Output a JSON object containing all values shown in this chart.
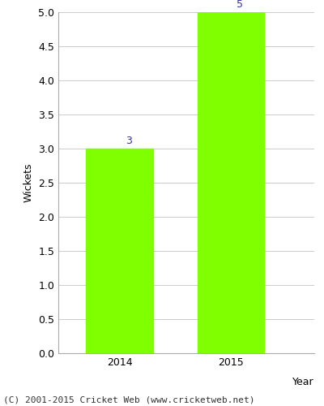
{
  "categories": [
    "2014",
    "2015"
  ],
  "values": [
    3,
    5
  ],
  "bar_color": "#7fff00",
  "label_color": "#3333aa",
  "xlabel": "Year",
  "ylabel": "Wickets",
  "ylim": [
    0,
    5.0
  ],
  "yticks": [
    0.0,
    0.5,
    1.0,
    1.5,
    2.0,
    2.5,
    3.0,
    3.5,
    4.0,
    4.5,
    5.0
  ],
  "grid_color": "#cccccc",
  "background_color": "#ffffff",
  "footer": "(C) 2001-2015 Cricket Web (www.cricketweb.net)",
  "label_fontsize": 9,
  "axis_fontsize": 9,
  "footer_fontsize": 8,
  "bar_width": 0.6
}
